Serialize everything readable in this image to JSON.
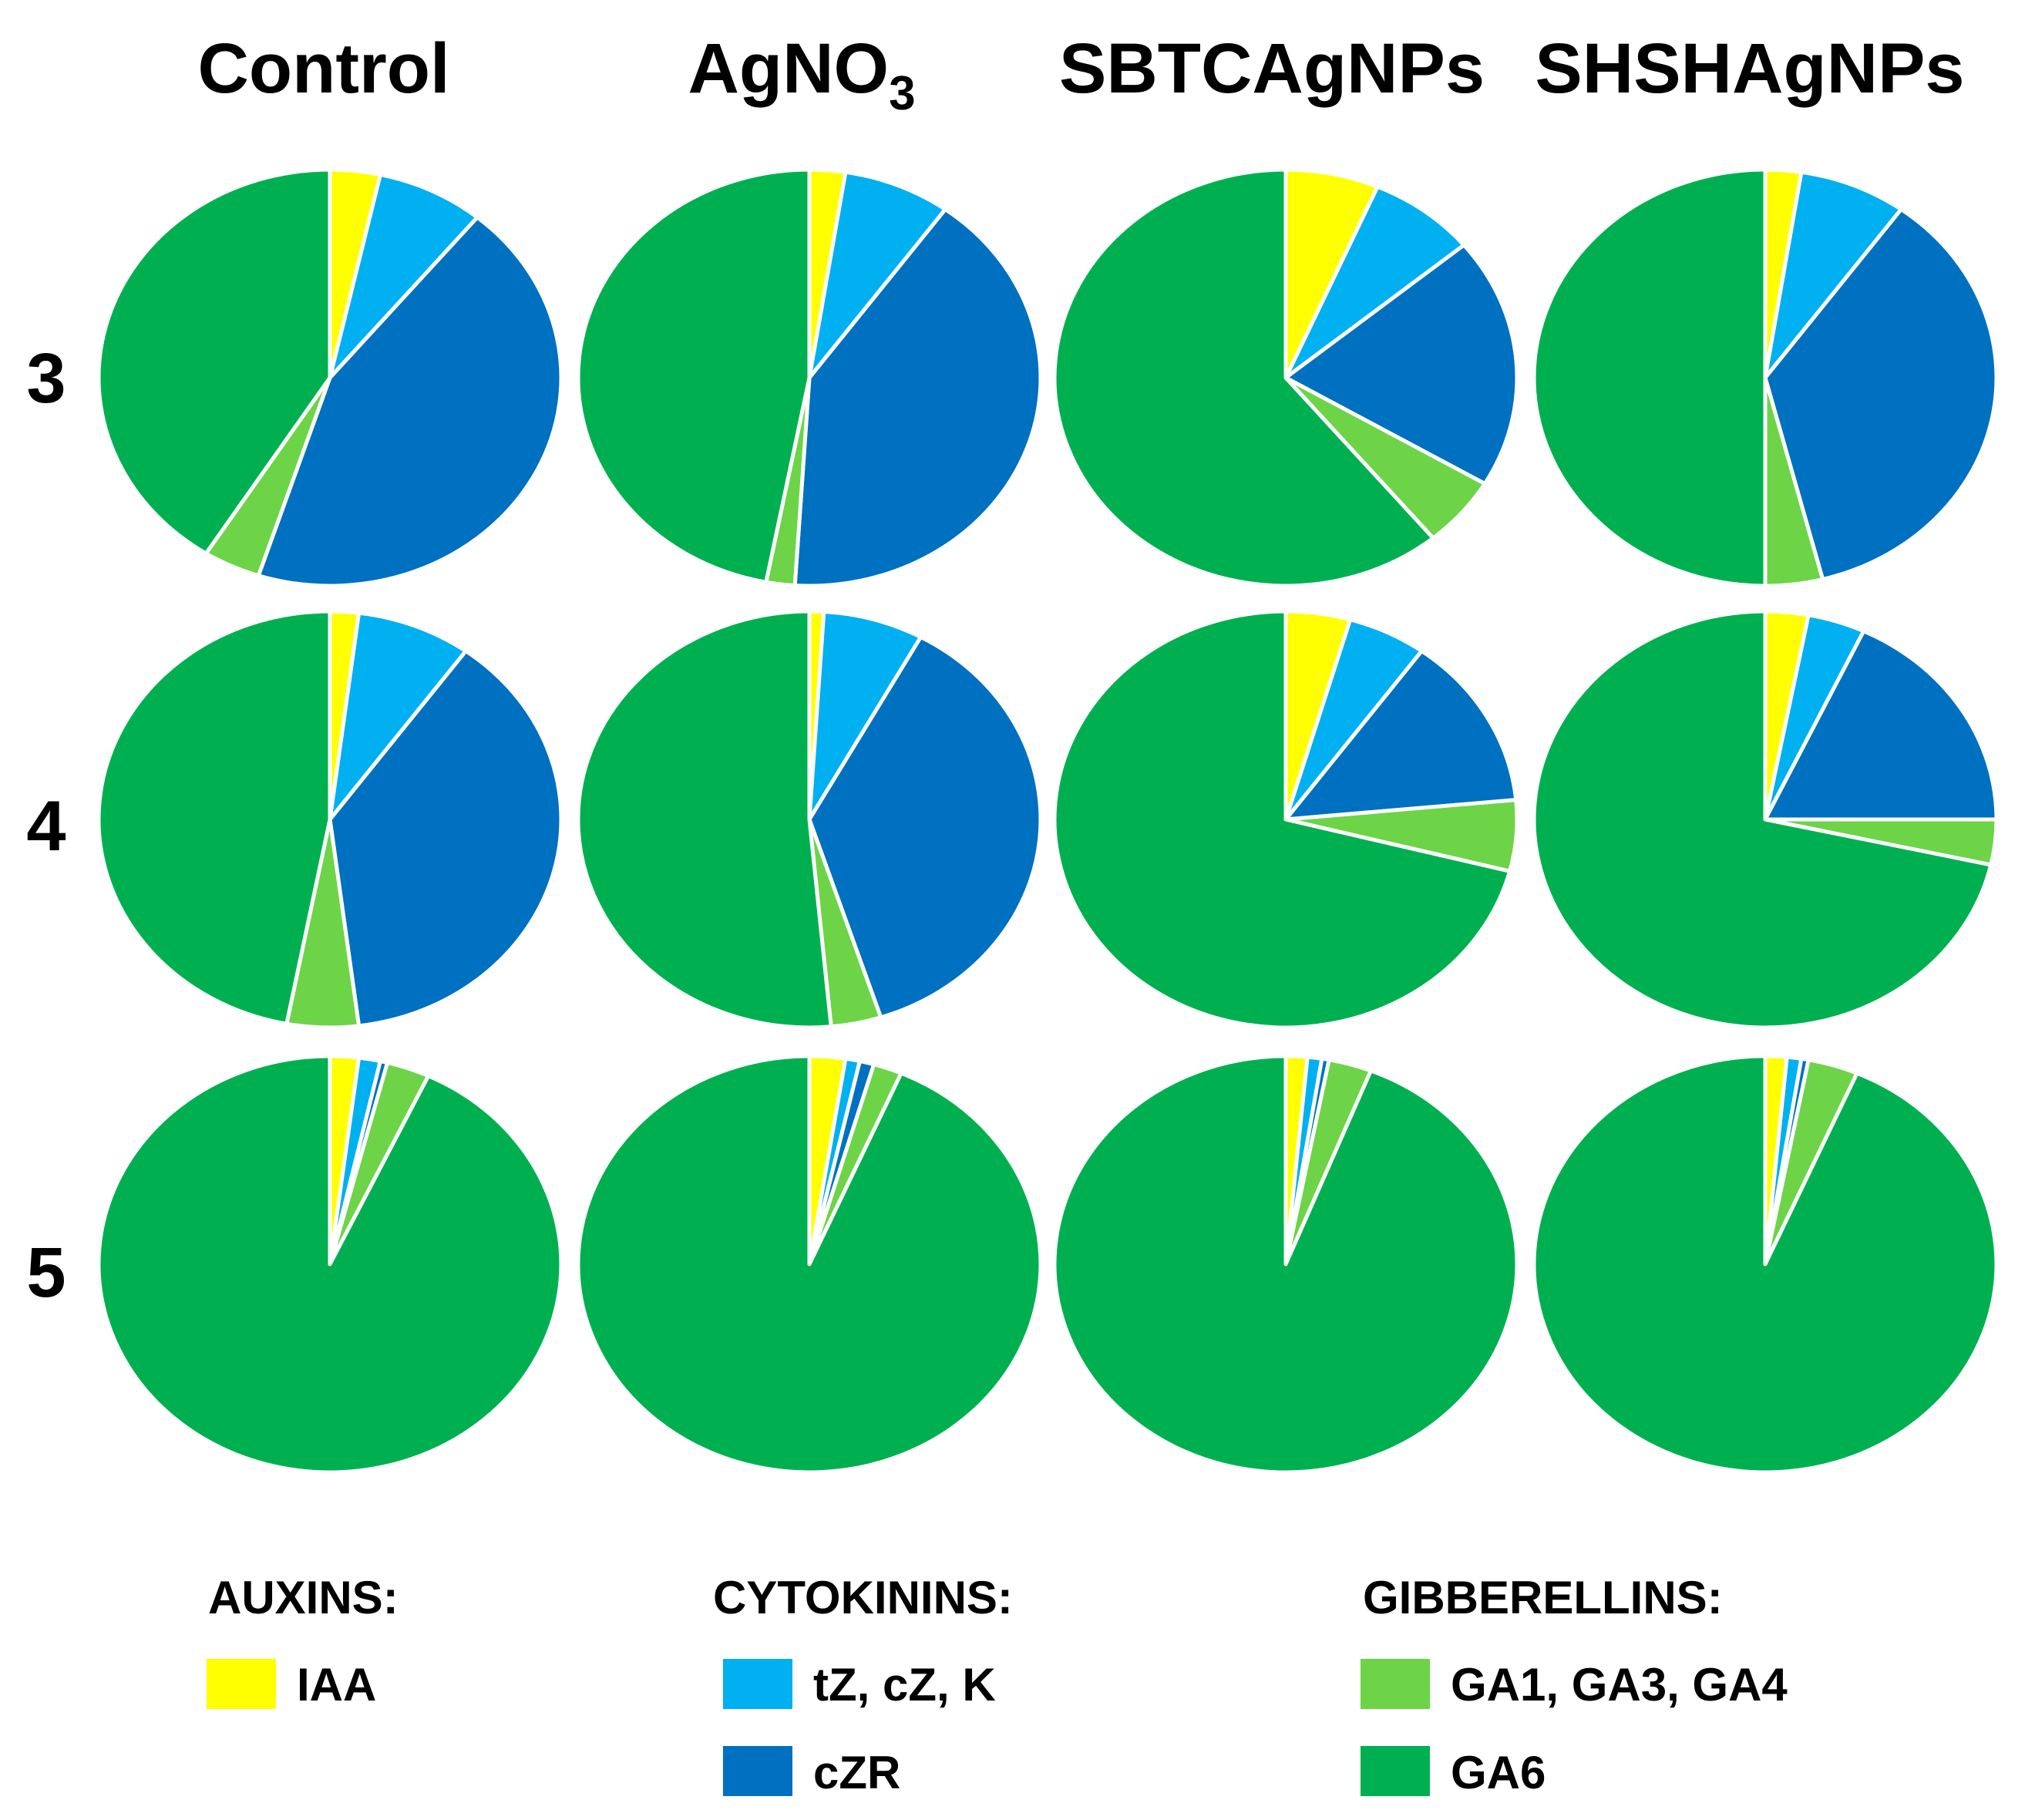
{
  "chart_data": {
    "type": "pie",
    "title": "",
    "columns": [
      {
        "label": "Control"
      },
      {
        "label": "AgNO",
        "sub": "3"
      },
      {
        "label": "SBTCAgNPs"
      },
      {
        "label": "SHSHAgNPs"
      }
    ],
    "rows": [
      "3",
      "4",
      "5"
    ],
    "categories": [
      "IAA",
      "tZ, cZ, K",
      "cZR",
      "GA1, GA3, GA4",
      "GA6"
    ],
    "colors": {
      "IAA": "#ffff00",
      "tZ, cZ, K": "#00b0f0",
      "cZR": "#0070c0",
      "GA1, GA3, GA4": "#6dd448",
      "GA6": "#00b050"
    },
    "pies": [
      {
        "row": "3",
        "column": "Control",
        "values": [
          3.5,
          7.5,
          44.0,
          4.0,
          41.0
        ]
      },
      {
        "row": "3",
        "column": "AgNO3",
        "values": [
          2.5,
          7.5,
          41.0,
          2.0,
          47.0
        ]
      },
      {
        "row": "3",
        "column": "SBTCAgNPs",
        "values": [
          6.5,
          7.5,
          19.5,
          5.5,
          61.0
        ]
      },
      {
        "row": "3",
        "column": "SHSHAgNPs",
        "values": [
          2.5,
          7.5,
          36.0,
          4.0,
          50.0
        ]
      },
      {
        "row": "4",
        "column": "Control",
        "values": [
          2.0,
          8.0,
          38.0,
          5.0,
          47.0
        ]
      },
      {
        "row": "4",
        "column": "AgNO3",
        "values": [
          1.0,
          7.0,
          37.0,
          3.5,
          51.5
        ]
      },
      {
        "row": "4",
        "column": "SBTCAgNPs",
        "values": [
          4.5,
          5.5,
          13.5,
          5.5,
          71.0
        ]
      },
      {
        "row": "4",
        "column": "SHSHAgNPs",
        "values": [
          3.0,
          4.0,
          18.0,
          3.5,
          71.5
        ]
      },
      {
        "row": "5",
        "column": "Control",
        "values": [
          2.0,
          1.5,
          0.5,
          3.0,
          93.0
        ]
      },
      {
        "row": "5",
        "column": "AgNO3",
        "values": [
          2.5,
          1.0,
          1.0,
          2.0,
          93.5
        ]
      },
      {
        "row": "5",
        "column": "SBTCAgNPs",
        "values": [
          1.5,
          1.0,
          0.5,
          3.0,
          94.0
        ]
      },
      {
        "row": "5",
        "column": "SHSHAgNPs",
        "values": [
          1.5,
          1.0,
          0.5,
          3.5,
          93.5
        ]
      }
    ],
    "legend": {
      "placement": "bottom",
      "groups": [
        {
          "heading": "AUXINS:",
          "items": [
            {
              "label": "IAA",
              "category": "IAA"
            }
          ]
        },
        {
          "heading": "CYTOKININS:",
          "items": [
            {
              "label": "tZ, cZ, K",
              "category": "tZ, cZ, K"
            },
            {
              "label": "cZR",
              "category": "cZR"
            }
          ]
        },
        {
          "heading": "GIBBERELLINS:",
          "items": [
            {
              "label": "GA1, GA3, GA4",
              "category": "GA1, GA3, GA4"
            },
            {
              "label": "GA6",
              "category": "GA6"
            }
          ]
        }
      ]
    }
  }
}
